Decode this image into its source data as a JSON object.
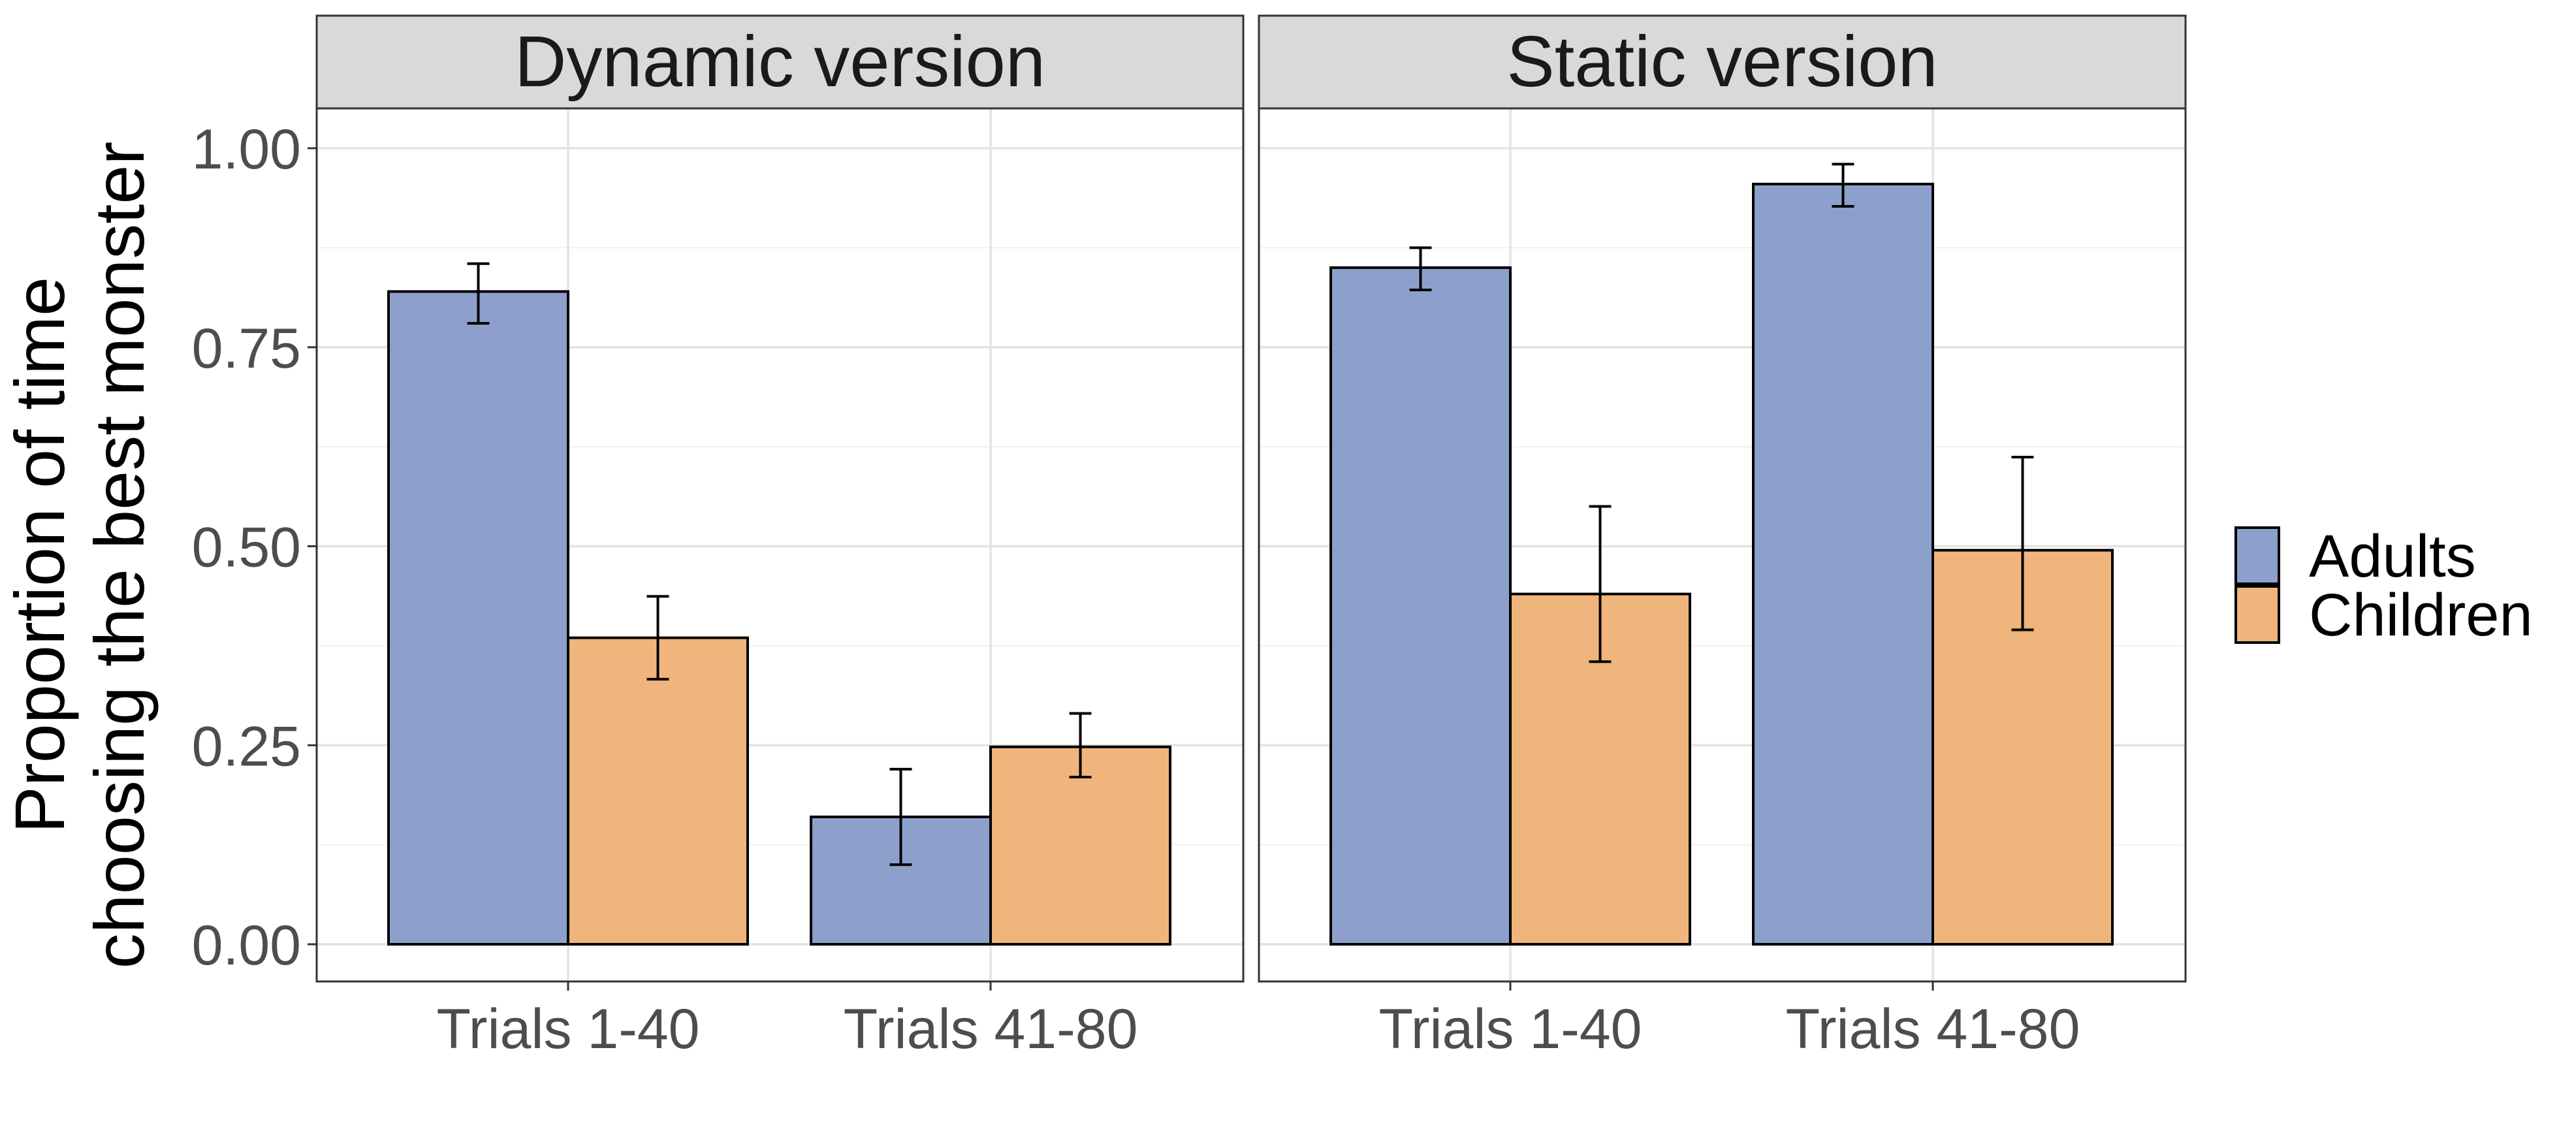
{
  "chart_data": {
    "type": "bar",
    "ylabel": [
      "Proportion of time",
      "choosing the best monster"
    ],
    "xlabel": "",
    "ylim": [
      0,
      1.1
    ],
    "y_ticks": [
      "0.00",
      "0.25",
      "0.50",
      "0.75",
      "1.00"
    ],
    "y_tick_values": [
      0,
      0.25,
      0.5,
      0.75,
      1.0
    ],
    "categories": [
      "Trials 1-40",
      "Trials 41-80"
    ],
    "grid": true,
    "legend_position": "right",
    "series_names": [
      "Adults",
      "Children"
    ],
    "colors": {
      "Adults": "#8DA0CB",
      "Children": "#F0B57C"
    },
    "panels": [
      {
        "title": "Dynamic version",
        "series": [
          {
            "name": "Adults",
            "values": [
              0.82,
              0.16
            ],
            "error_low": [
              0.78,
              0.1
            ],
            "error_high": [
              0.855,
              0.22
            ]
          },
          {
            "name": "Children",
            "values": [
              0.385,
              0.248
            ],
            "error_low": [
              0.333,
              0.21
            ],
            "error_high": [
              0.437,
              0.29
            ]
          }
        ]
      },
      {
        "title": "Static version",
        "series": [
          {
            "name": "Adults",
            "values": [
              0.85,
              0.955
            ],
            "error_low": [
              0.822,
              0.927
            ],
            "error_high": [
              0.875,
              0.98
            ]
          },
          {
            "name": "Children",
            "values": [
              0.44,
              0.495
            ],
            "error_low": [
              0.355,
              0.395
            ],
            "error_high": [
              0.55,
              0.612
            ]
          }
        ]
      }
    ]
  }
}
